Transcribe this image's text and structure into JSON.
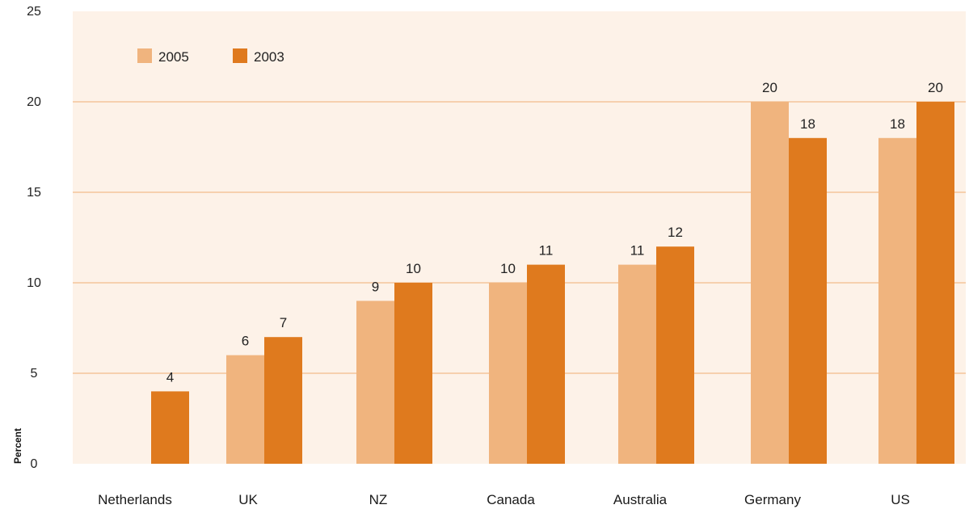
{
  "chart_data": {
    "type": "bar",
    "categories": [
      "Netherlands",
      "UK",
      "NZ",
      "Canada",
      "Australia",
      "Germany",
      "US"
    ],
    "series": [
      {
        "name": "2005",
        "color": "#f0b47e",
        "values": [
          null,
          6,
          9,
          10,
          11,
          20,
          18
        ]
      },
      {
        "name": "2003",
        "color": "#df7a1e",
        "values": [
          4,
          7,
          10,
          11,
          12,
          18,
          20
        ]
      }
    ],
    "ylabel": "Percent",
    "ylim": [
      0,
      25
    ],
    "yticks": [
      "0",
      "5",
      "10",
      "15",
      "20",
      "25"
    ],
    "grid": true,
    "legend_position": "top-left",
    "colors": {
      "plot_background": "#fdf2e8",
      "gridline": "#f3c49a"
    }
  }
}
